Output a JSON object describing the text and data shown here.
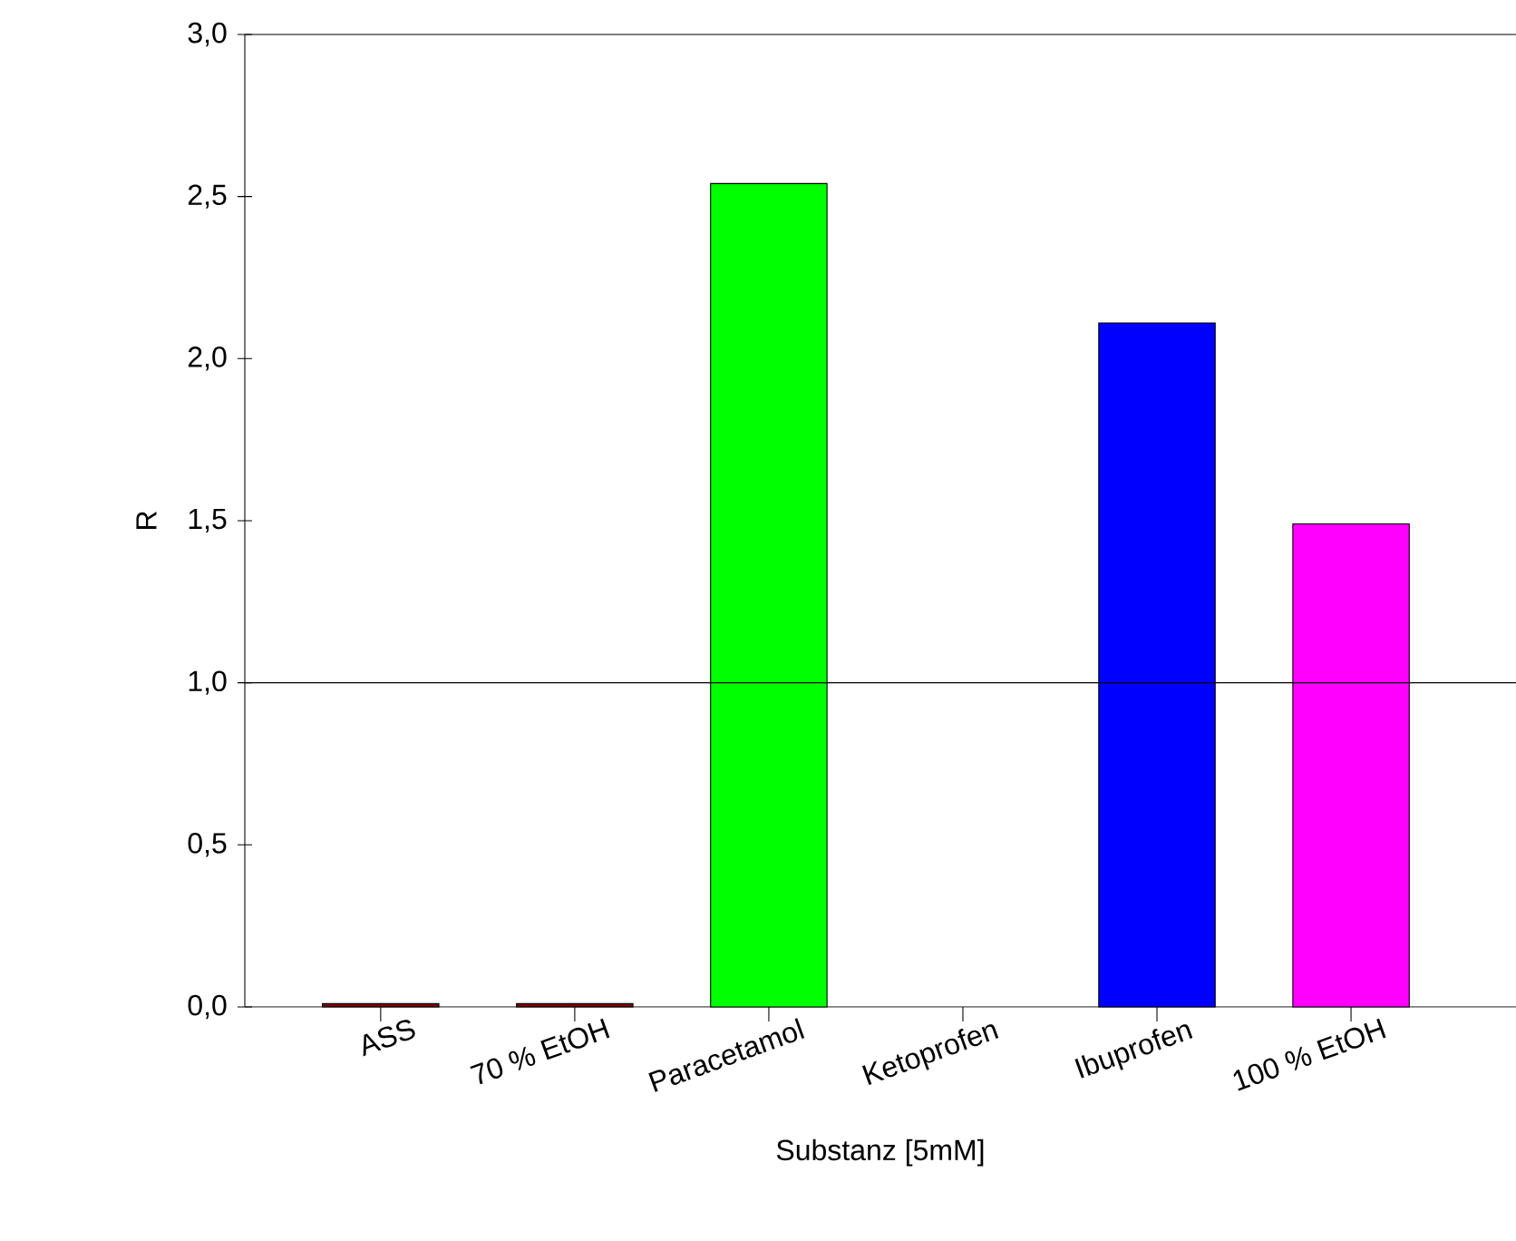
{
  "chart_data": {
    "type": "bar",
    "xlabel": "Substanz [5mM]",
    "ylabel": "R",
    "categories": [
      "ASS",
      "70 % EtOH",
      "Paracetamol",
      "Ketoprofen",
      "Ibuprofen",
      "100 % EtOH"
    ],
    "values": [
      0.01,
      0.01,
      2.54,
      0,
      2.11,
      1.49
    ],
    "colors": [
      "#800000",
      "#800000",
      "#00ff00",
      null,
      "#0000ff",
      "#ff00ff"
    ],
    "ylim": [
      0,
      3
    ],
    "yticks": [
      {
        "value": 0,
        "label": "0,0"
      },
      {
        "value": 0.5,
        "label": "0,5"
      },
      {
        "value": 1,
        "label": "1,0"
      },
      {
        "value": 1.5,
        "label": "1,5"
      },
      {
        "value": 2,
        "label": "2,0"
      },
      {
        "value": 2.5,
        "label": "2,5"
      },
      {
        "value": 3,
        "label": "3,0"
      }
    ],
    "ref_lines": [
      {
        "axis": "y",
        "value": 1,
        "color": "#000000"
      }
    ],
    "grid": false
  }
}
